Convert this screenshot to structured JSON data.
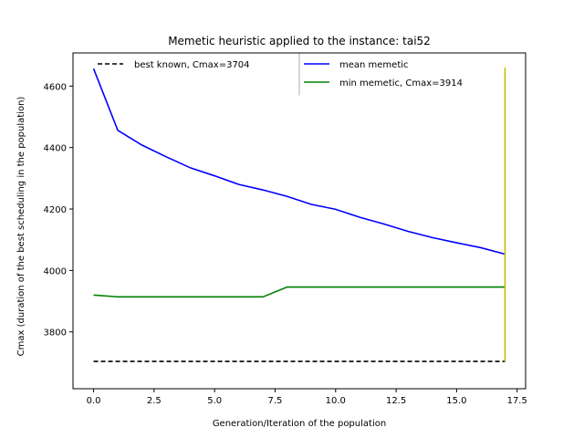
{
  "chart_data": {
    "type": "line",
    "title": "Memetic heuristic applied to the instance: tai52",
    "xlabel": "Generation/Iteration of the population",
    "ylabel": "Cmax (duration of the best scheduling in the population)",
    "xlim": [
      -0.85,
      17.85
    ],
    "ylim": [
      3615,
      4708
    ],
    "x_ticks": [
      0.0,
      2.5,
      5.0,
      7.5,
      10.0,
      12.5,
      15.0,
      17.5
    ],
    "x_tick_labels": [
      "0.0",
      "2.5",
      "5.0",
      "7.5",
      "10.0",
      "12.5",
      "15.0",
      "17.5"
    ],
    "y_ticks": [
      3800,
      4000,
      4200,
      4400,
      4600
    ],
    "y_tick_labels": [
      "3800",
      "4000",
      "4200",
      "4400",
      "4600"
    ],
    "grid": false,
    "legend_position": "top",
    "series": [
      {
        "name": "best known, Cmax=3704",
        "color": "#000000",
        "dash": true,
        "x": [
          0,
          17
        ],
        "y": [
          3704,
          3704
        ]
      },
      {
        "name": "mean memetic",
        "color": "#0000ff",
        "dash": false,
        "x": [
          0,
          1,
          2,
          3,
          4,
          5,
          6,
          7,
          8,
          9,
          10,
          11,
          12,
          13,
          14,
          15,
          16,
          17
        ],
        "y": [
          4657,
          4456,
          4408,
          4370,
          4334,
          4308,
          4280,
          4262,
          4241,
          4215,
          4199,
          4173,
          4151,
          4127,
          4107,
          4090,
          4074,
          4053
        ]
      },
      {
        "name": "min memetic, Cmax=3914",
        "color": "#008000",
        "dash": false,
        "x": [
          0,
          1,
          2,
          3,
          4,
          5,
          6,
          7,
          8,
          9,
          10,
          11,
          12,
          13,
          14,
          15,
          16,
          17
        ],
        "y": [
          3920,
          3914,
          3914,
          3914,
          3914,
          3914,
          3914,
          3914,
          3946,
          3946,
          3946,
          3946,
          3946,
          3946,
          3946,
          3946,
          3946,
          3946
        ]
      }
    ],
    "vertical_lines": [
      {
        "x": 17,
        "y": [
          3704,
          4660
        ],
        "color": "#bfbf00"
      },
      {
        "x": 8.5,
        "y": [
          4570,
          4708
        ],
        "color": "#cccccc"
      }
    ]
  }
}
